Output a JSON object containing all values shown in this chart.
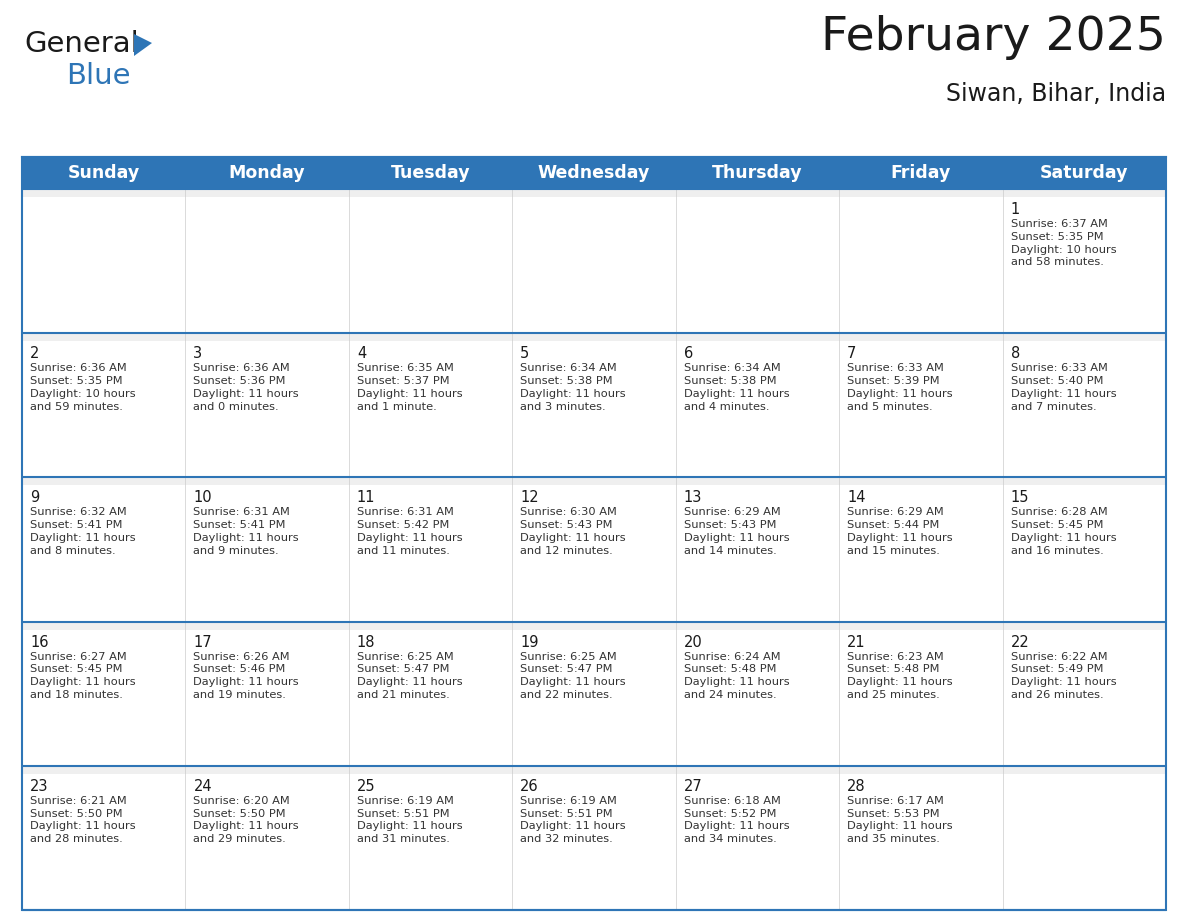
{
  "title": "February 2025",
  "subtitle": "Siwan, Bihar, India",
  "header_bg": "#2E75B6",
  "header_text_color": "#FFFFFF",
  "border_color": "#2E75B6",
  "row_sep_color": "#2E75B6",
  "cell_top_bg": "#EFEFEF",
  "cell_main_bg": "#FFFFFF",
  "day_number_color": "#1a1a1a",
  "info_text_color": "#333333",
  "days_of_week": [
    "Sunday",
    "Monday",
    "Tuesday",
    "Wednesday",
    "Thursday",
    "Friday",
    "Saturday"
  ],
  "title_fontsize": 34,
  "subtitle_fontsize": 17,
  "header_fontsize": 12.5,
  "cell_day_fontsize": 10.5,
  "cell_info_fontsize": 8.2,
  "logo_general_color": "#1a1a1a",
  "logo_blue_color": "#2E75B6",
  "calendar": [
    [
      null,
      null,
      null,
      null,
      null,
      null,
      {
        "day": 1,
        "sunrise": "6:37 AM",
        "sunset": "5:35 PM",
        "daylight": "10 hours\nand 58 minutes."
      }
    ],
    [
      {
        "day": 2,
        "sunrise": "6:36 AM",
        "sunset": "5:35 PM",
        "daylight": "10 hours\nand 59 minutes."
      },
      {
        "day": 3,
        "sunrise": "6:36 AM",
        "sunset": "5:36 PM",
        "daylight": "11 hours\nand 0 minutes."
      },
      {
        "day": 4,
        "sunrise": "6:35 AM",
        "sunset": "5:37 PM",
        "daylight": "11 hours\nand 1 minute."
      },
      {
        "day": 5,
        "sunrise": "6:34 AM",
        "sunset": "5:38 PM",
        "daylight": "11 hours\nand 3 minutes."
      },
      {
        "day": 6,
        "sunrise": "6:34 AM",
        "sunset": "5:38 PM",
        "daylight": "11 hours\nand 4 minutes."
      },
      {
        "day": 7,
        "sunrise": "6:33 AM",
        "sunset": "5:39 PM",
        "daylight": "11 hours\nand 5 minutes."
      },
      {
        "day": 8,
        "sunrise": "6:33 AM",
        "sunset": "5:40 PM",
        "daylight": "11 hours\nand 7 minutes."
      }
    ],
    [
      {
        "day": 9,
        "sunrise": "6:32 AM",
        "sunset": "5:41 PM",
        "daylight": "11 hours\nand 8 minutes."
      },
      {
        "day": 10,
        "sunrise": "6:31 AM",
        "sunset": "5:41 PM",
        "daylight": "11 hours\nand 9 minutes."
      },
      {
        "day": 11,
        "sunrise": "6:31 AM",
        "sunset": "5:42 PM",
        "daylight": "11 hours\nand 11 minutes."
      },
      {
        "day": 12,
        "sunrise": "6:30 AM",
        "sunset": "5:43 PM",
        "daylight": "11 hours\nand 12 minutes."
      },
      {
        "day": 13,
        "sunrise": "6:29 AM",
        "sunset": "5:43 PM",
        "daylight": "11 hours\nand 14 minutes."
      },
      {
        "day": 14,
        "sunrise": "6:29 AM",
        "sunset": "5:44 PM",
        "daylight": "11 hours\nand 15 minutes."
      },
      {
        "day": 15,
        "sunrise": "6:28 AM",
        "sunset": "5:45 PM",
        "daylight": "11 hours\nand 16 minutes."
      }
    ],
    [
      {
        "day": 16,
        "sunrise": "6:27 AM",
        "sunset": "5:45 PM",
        "daylight": "11 hours\nand 18 minutes."
      },
      {
        "day": 17,
        "sunrise": "6:26 AM",
        "sunset": "5:46 PM",
        "daylight": "11 hours\nand 19 minutes."
      },
      {
        "day": 18,
        "sunrise": "6:25 AM",
        "sunset": "5:47 PM",
        "daylight": "11 hours\nand 21 minutes."
      },
      {
        "day": 19,
        "sunrise": "6:25 AM",
        "sunset": "5:47 PM",
        "daylight": "11 hours\nand 22 minutes."
      },
      {
        "day": 20,
        "sunrise": "6:24 AM",
        "sunset": "5:48 PM",
        "daylight": "11 hours\nand 24 minutes."
      },
      {
        "day": 21,
        "sunrise": "6:23 AM",
        "sunset": "5:48 PM",
        "daylight": "11 hours\nand 25 minutes."
      },
      {
        "day": 22,
        "sunrise": "6:22 AM",
        "sunset": "5:49 PM",
        "daylight": "11 hours\nand 26 minutes."
      }
    ],
    [
      {
        "day": 23,
        "sunrise": "6:21 AM",
        "sunset": "5:50 PM",
        "daylight": "11 hours\nand 28 minutes."
      },
      {
        "day": 24,
        "sunrise": "6:20 AM",
        "sunset": "5:50 PM",
        "daylight": "11 hours\nand 29 minutes."
      },
      {
        "day": 25,
        "sunrise": "6:19 AM",
        "sunset": "5:51 PM",
        "daylight": "11 hours\nand 31 minutes."
      },
      {
        "day": 26,
        "sunrise": "6:19 AM",
        "sunset": "5:51 PM",
        "daylight": "11 hours\nand 32 minutes."
      },
      {
        "day": 27,
        "sunrise": "6:18 AM",
        "sunset": "5:52 PM",
        "daylight": "11 hours\nand 34 minutes."
      },
      {
        "day": 28,
        "sunrise": "6:17 AM",
        "sunset": "5:53 PM",
        "daylight": "11 hours\nand 35 minutes."
      },
      null
    ]
  ]
}
